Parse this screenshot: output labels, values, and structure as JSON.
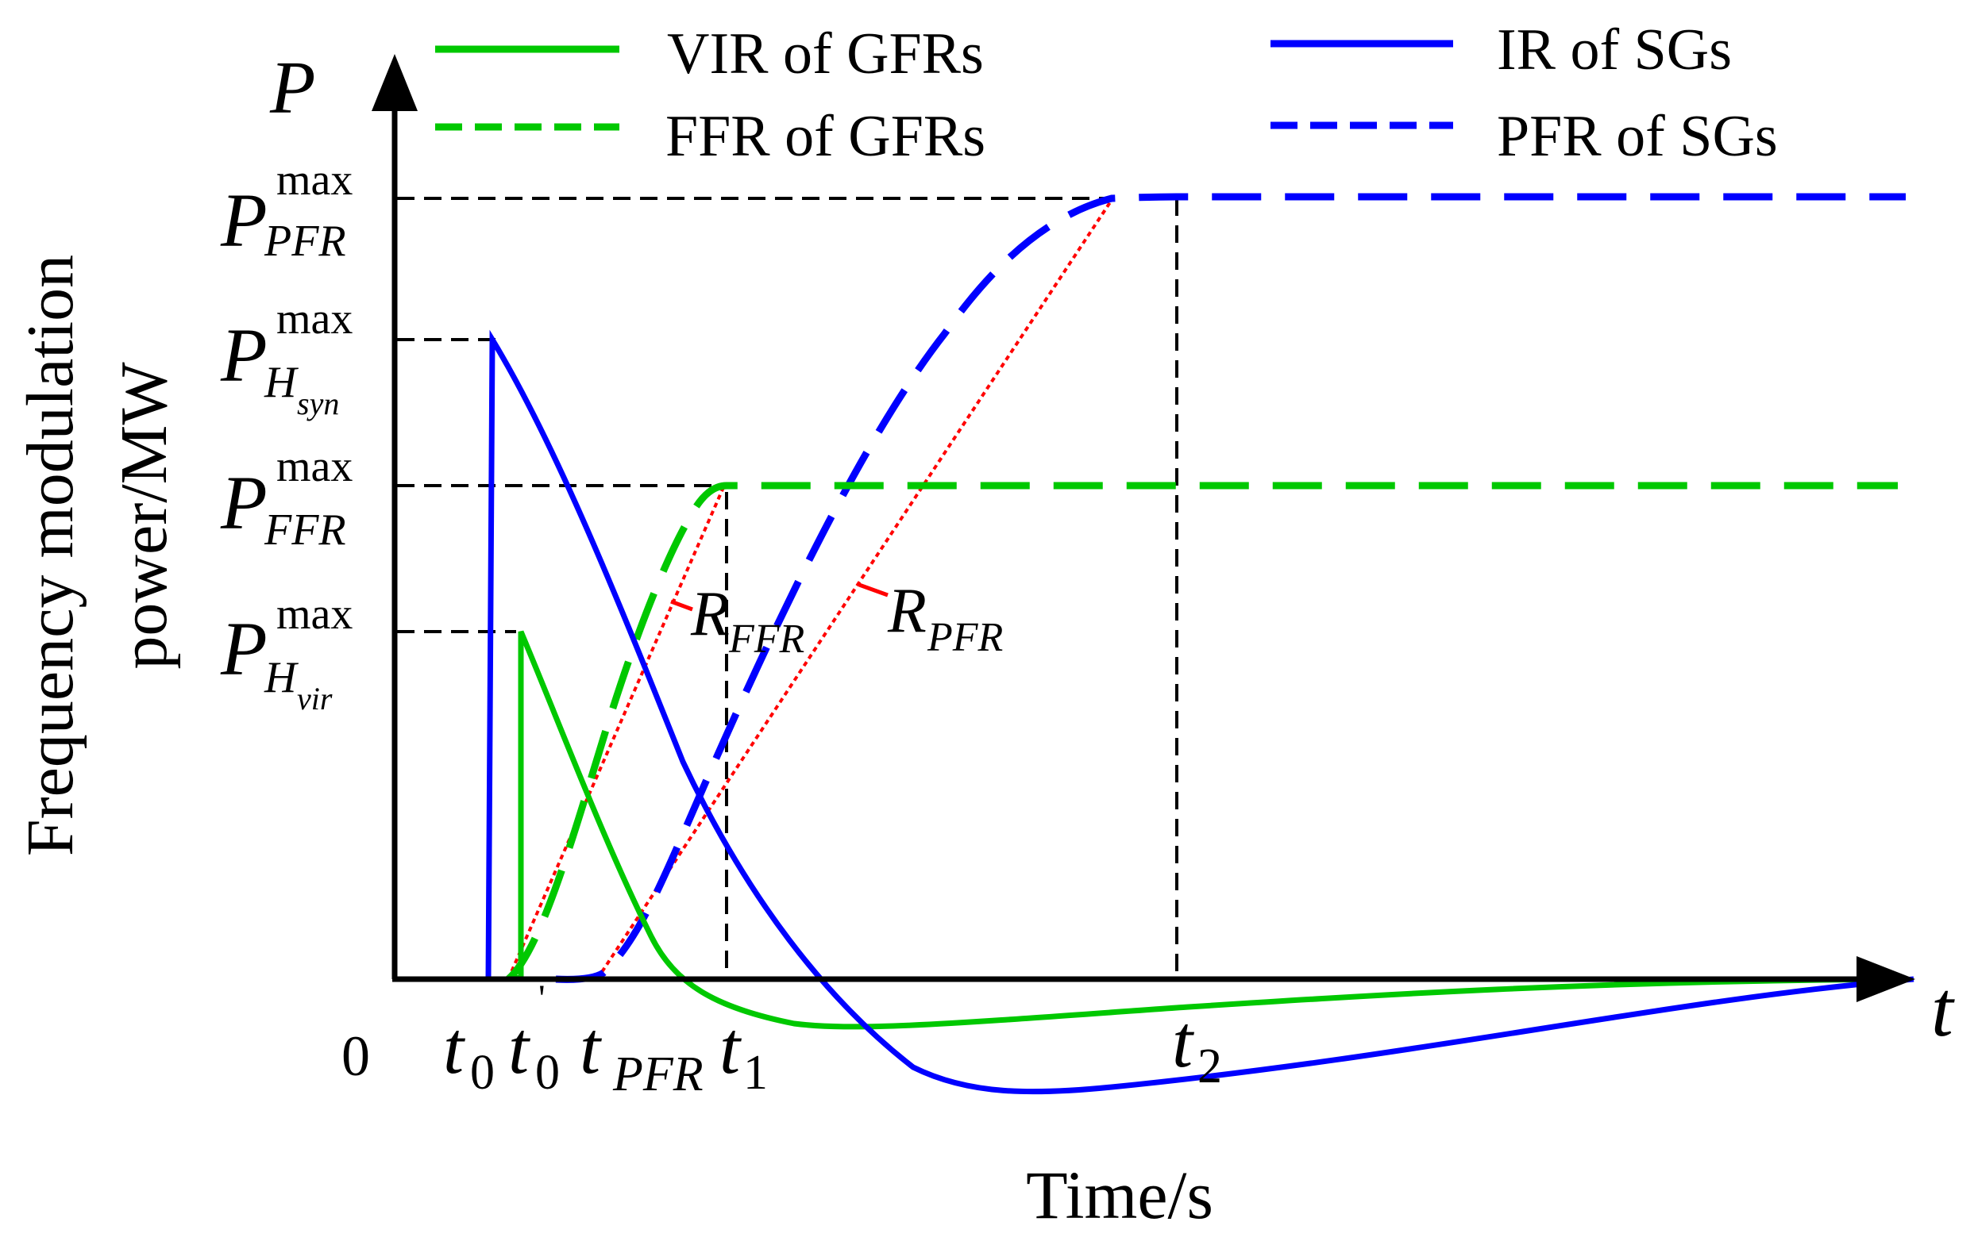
{
  "diagram": {
    "colors": {
      "axis": "#000000",
      "green": "#00c800",
      "blue": "#0000ff",
      "red": "#ff0000",
      "guide": "#000000"
    },
    "y_axis": {
      "symbol": "P",
      "title_line1": "Frequency modulation",
      "title_line2": "power/MW"
    },
    "x_axis": {
      "symbol": "t",
      "title": "Time/s",
      "origin": "0"
    },
    "y_levels": [
      {
        "name": "level-pfr",
        "base": "P",
        "sup": "max",
        "sub": "PFR",
        "subsub": ""
      },
      {
        "name": "level-hsyn",
        "base": "P",
        "sup": "max",
        "sub": "H",
        "subsub": "syn"
      },
      {
        "name": "level-ffr",
        "base": "P",
        "sup": "max",
        "sub": "FFR",
        "subsub": ""
      },
      {
        "name": "level-hvir",
        "base": "P",
        "sup": "max",
        "sub": "H",
        "subsub": "vir"
      }
    ],
    "time_marks": [
      {
        "name": "t0",
        "base": "t",
        "sub": "0",
        "prime": ""
      },
      {
        "name": "t0-prime",
        "base": "t",
        "sub": "0",
        "prime": "'"
      },
      {
        "name": "tpfr",
        "base": "t",
        "sub": "PFR",
        "prime": ""
      },
      {
        "name": "t1",
        "base": "t",
        "sub": "1",
        "prime": ""
      },
      {
        "name": "t2",
        "base": "t",
        "sub": "2",
        "prime": ""
      }
    ],
    "legend": [
      {
        "label": "VIR of GFRs",
        "color": "#00c800",
        "style": "solid"
      },
      {
        "label": "FFR of GFRs",
        "color": "#00c800",
        "style": "dashed"
      },
      {
        "label": "IR of SGs",
        "color": "#0000ff",
        "style": "solid"
      },
      {
        "label": "PFR of SGs",
        "color": "#0000ff",
        "style": "dashed"
      }
    ],
    "ramp_labels": [
      {
        "base": "R",
        "sub": "FFR"
      },
      {
        "base": "R",
        "sub": "PFR"
      }
    ]
  }
}
